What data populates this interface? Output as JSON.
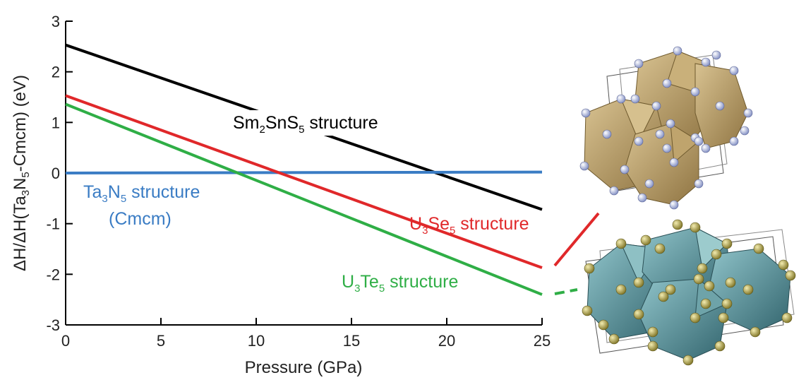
{
  "chart_data": {
    "type": "line",
    "xlabel": "Pressure (GPa)",
    "ylabel": {
      "parts": [
        "ΔH/ΔH(Ta",
        "3",
        "N",
        "5",
        "-Cmcm) (eV)"
      ]
    },
    "xlim": [
      0,
      25
    ],
    "ylim": [
      -3,
      3
    ],
    "xticks": [
      0,
      5,
      10,
      15,
      20,
      25
    ],
    "yticks": [
      -3,
      -2,
      -1,
      0,
      1,
      2,
      3
    ],
    "grid": false,
    "series": [
      {
        "name": "Sm2SnS5 structure",
        "label_parts": [
          "Sm",
          "2",
          "SnS",
          "5",
          " structure"
        ],
        "color": "#000000",
        "x": [
          0,
          25
        ],
        "y": [
          2.53,
          -0.72
        ]
      },
      {
        "name": "Ta3N5 structure (Cmcm)",
        "label_parts": [
          "Ta",
          "3",
          "N",
          "5",
          " structure"
        ],
        "label_line2": "(Cmcm)",
        "color": "#3a7cc4",
        "x": [
          0,
          25
        ],
        "y": [
          0.0,
          0.02
        ]
      },
      {
        "name": "U3Se5 structure",
        "label_parts": [
          "U",
          "3",
          "Se",
          "5",
          " structure"
        ],
        "color": "#e0282a",
        "x": [
          0,
          25
        ],
        "y": [
          1.53,
          -1.87
        ]
      },
      {
        "name": "U3Te5 structure",
        "label_parts": [
          "U",
          "3",
          "Te",
          "5",
          " structure"
        ],
        "color": "#2fae46",
        "x": [
          0,
          25
        ],
        "y": [
          1.36,
          -2.4
        ]
      }
    ]
  },
  "illustrations": {
    "top_structure": {
      "polyhedra_color": "#b59a62",
      "atom_color": "#aab4d8"
    },
    "bottom_structure": {
      "polyhedra_color": "#4f8a93",
      "atom_color": "#a49a3c"
    }
  }
}
